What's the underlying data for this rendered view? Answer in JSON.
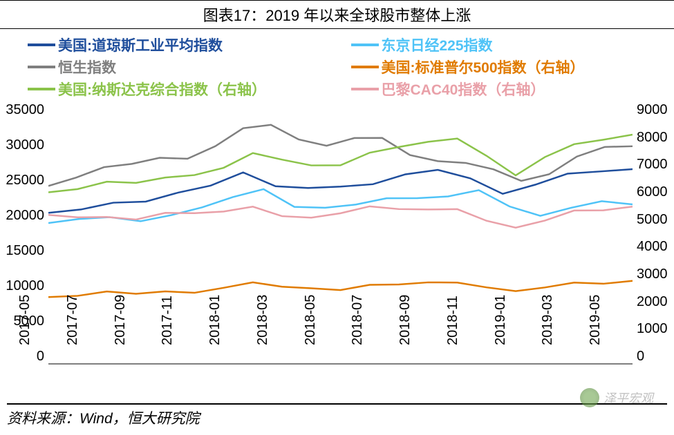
{
  "title": "图表17：2019 年以来全球股市整体上涨",
  "source": "资料来源：Wind，恒大研究院",
  "watermark": "泽平宏观",
  "legend": [
    {
      "label": "美国:道琼斯工业平均指数",
      "color": "#1f4e9c"
    },
    {
      "label": "东京日经225指数",
      "color": "#4fc3f7"
    },
    {
      "label": "恒生指数",
      "color": "#7f7f7f"
    },
    {
      "label": "美国:标准普尔500指数（右轴）",
      "color": "#e07b00"
    },
    {
      "label": "美国:纳斯达克综合指数（右轴）",
      "color": "#8bc34a"
    },
    {
      "label": "巴黎CAC40指数（右轴）",
      "color": "#e9a0a8"
    }
  ],
  "chart": {
    "type": "line",
    "background_color": "#ffffff",
    "axis_color": "#7f7f7f",
    "tick_fontsize": 20,
    "title_fontsize": 22,
    "legend_fontsize": 21,
    "line_width": 2.5,
    "y_left": {
      "min": 0,
      "max": 35000,
      "ticks": [
        0,
        5000,
        10000,
        15000,
        20000,
        25000,
        30000,
        35000
      ]
    },
    "y_right": {
      "min": 0,
      "max": 9000,
      "ticks": [
        0,
        1000,
        2000,
        3000,
        4000,
        5000,
        6000,
        7000,
        8000,
        9000
      ]
    },
    "x_labels": [
      "2017-05",
      "2017-07",
      "2017-09",
      "2017-11",
      "2018-01",
      "2018-03",
      "2018-05",
      "2018-07",
      "2018-09",
      "2018-11",
      "2019-01",
      "2019-03",
      "2019-05"
    ],
    "series": [
      {
        "name": "美国:道琼斯工业平均指数",
        "axis": "left",
        "color": "#1f4e9c",
        "values": [
          20900,
          21300,
          21800,
          22300,
          23400,
          24800,
          26200,
          24200,
          24100,
          24300,
          25000,
          25800,
          26600,
          25300,
          23500,
          24800,
          25900,
          26400,
          26500
        ]
      },
      {
        "name": "东京日经225指数",
        "axis": "left",
        "color": "#4fc3f7",
        "values": [
          19500,
          20000,
          19800,
          19600,
          20300,
          21800,
          22800,
          23800,
          21500,
          21400,
          22200,
          22500,
          22700,
          22800,
          24000,
          21800,
          20100,
          21400,
          22100,
          22200
        ]
      },
      {
        "name": "恒生指数",
        "axis": "left",
        "color": "#7f7f7f",
        "values": [
          24600,
          25700,
          26700,
          27500,
          28200,
          28500,
          29800,
          32200,
          32800,
          30800,
          30300,
          30800,
          31000,
          28500,
          28000,
          27800,
          26500,
          25100,
          25800,
          28800,
          29800,
          29800
        ]
      },
      {
        "name": "美国:标准普尔500指数（右轴）",
        "axis": "right",
        "color": "#e07b00",
        "values": [
          2390,
          2420,
          2460,
          2470,
          2520,
          2580,
          2650,
          2820,
          2700,
          2650,
          2680,
          2720,
          2780,
          2820,
          2900,
          2740,
          2500,
          2680,
          2800,
          2900,
          2920
        ]
      },
      {
        "name": "美国:纳斯达克综合指数（右轴）",
        "axis": "right",
        "color": "#8bc34a",
        "values": [
          6100,
          6200,
          6350,
          6400,
          6550,
          6750,
          6900,
          7400,
          7200,
          7000,
          7100,
          7400,
          7650,
          7800,
          8000,
          7400,
          6600,
          7300,
          7700,
          8000,
          8100
        ]
      },
      {
        "name": "巴黎CAC40指数（右轴）",
        "axis": "right",
        "color": "#e9a0a8",
        "values": [
          5300,
          5200,
          5100,
          5100,
          5300,
          5400,
          5350,
          5500,
          5200,
          5150,
          5400,
          5500,
          5450,
          5400,
          5500,
          5100,
          4750,
          5050,
          5350,
          5500,
          5550
        ]
      }
    ]
  }
}
